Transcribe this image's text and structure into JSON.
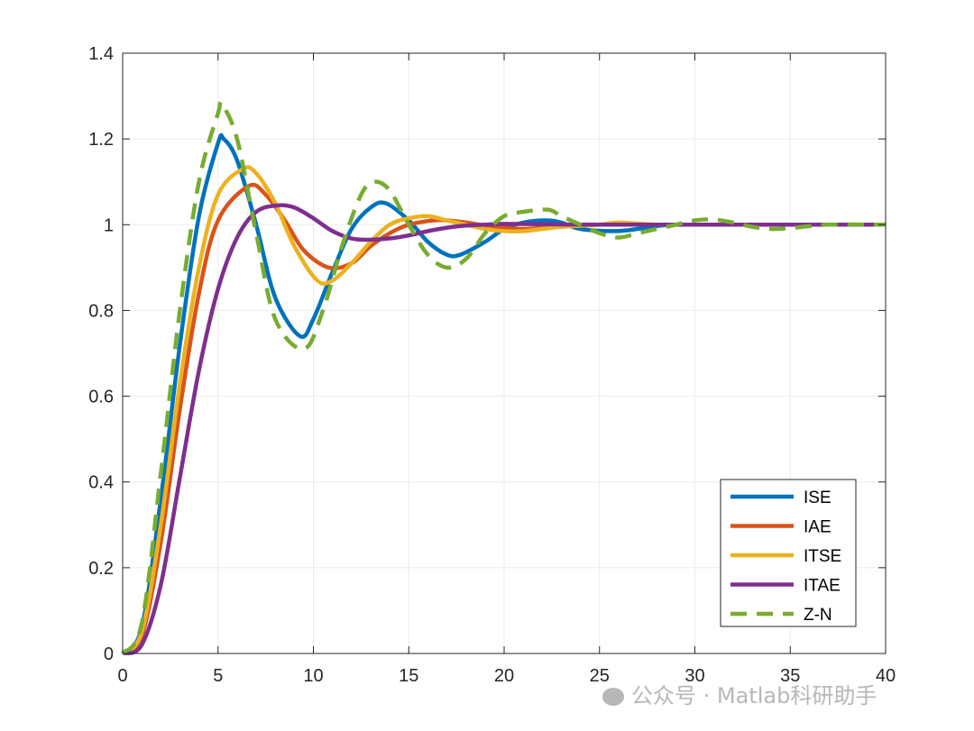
{
  "chart_data": {
    "type": "line",
    "title": "",
    "xlabel": "",
    "ylabel": "",
    "xlim": [
      0,
      40
    ],
    "ylim": [
      0,
      1.4
    ],
    "xticks": [
      0,
      5,
      10,
      15,
      20,
      25,
      30,
      35,
      40
    ],
    "yticks": [
      0,
      0.2,
      0.4,
      0.6,
      0.8,
      1,
      1.2,
      1.4
    ],
    "xtick_labels": [
      "0",
      "5",
      "10",
      "15",
      "20",
      "25",
      "30",
      "35",
      "40"
    ],
    "ytick_labels": [
      "0",
      "0.2",
      "0.4",
      "0.6",
      "0.8",
      "1",
      "1.2",
      "1.4"
    ],
    "grid": true,
    "legend_position": "bottom-right",
    "series": [
      {
        "name": "ISE",
        "color": "#0072BD",
        "dash": false,
        "x": [
          0,
          1,
          2,
          3,
          4,
          5,
          5.3,
          6,
          7,
          8,
          9.3,
          10,
          11,
          12,
          13,
          13.8,
          15,
          16,
          17,
          17.7,
          19,
          20,
          21,
          22.2,
          23,
          24,
          25.8,
          27,
          28,
          29,
          30,
          32,
          35,
          40
        ],
        "y": [
          0,
          0.06,
          0.36,
          0.72,
          1.02,
          1.19,
          1.2,
          1.15,
          1.0,
          0.83,
          0.74,
          0.78,
          0.89,
          0.99,
          1.04,
          1.05,
          1.01,
          0.96,
          0.93,
          0.93,
          0.96,
          0.99,
          1.005,
          1.01,
          1.005,
          0.99,
          0.985,
          0.99,
          0.997,
          1.0,
          1.0,
          1.0,
          1.0,
          1.0
        ]
      },
      {
        "name": "IAE",
        "color": "#D95319",
        "dash": false,
        "x": [
          0,
          1,
          2,
          3,
          4,
          5,
          6.6,
          7.5,
          8.5,
          9.5,
          10.8,
          12,
          13,
          14,
          15,
          16.3,
          17,
          18,
          19,
          20,
          21,
          22,
          23,
          25,
          28,
          30,
          35,
          40
        ],
        "y": [
          0,
          0.04,
          0.26,
          0.57,
          0.84,
          1.01,
          1.09,
          1.07,
          1.01,
          0.94,
          0.9,
          0.91,
          0.95,
          0.98,
          1.0,
          1.01,
          1.01,
          1.005,
          0.998,
          0.993,
          0.99,
          0.993,
          0.998,
          1.0,
          1.0,
          1.0,
          1.0,
          1.0
        ]
      },
      {
        "name": "ITSE",
        "color": "#EDB120",
        "dash": false,
        "x": [
          0,
          1,
          2,
          3,
          4,
          5,
          6.3,
          7,
          8,
          9,
          10.2,
          11,
          12,
          13,
          14,
          15,
          16,
          17,
          18,
          19,
          20,
          21,
          22,
          23,
          25,
          26,
          28,
          30,
          35,
          40
        ],
        "y": [
          0,
          0.05,
          0.3,
          0.63,
          0.9,
          1.07,
          1.13,
          1.12,
          1.05,
          0.95,
          0.87,
          0.87,
          0.91,
          0.96,
          1.0,
          1.015,
          1.02,
          1.01,
          1.0,
          0.99,
          0.985,
          0.985,
          0.99,
          0.995,
          1.0,
          1.005,
          1.0,
          1.0,
          1.0,
          1.0
        ]
      },
      {
        "name": "ITAE",
        "color": "#7E2F8E",
        "dash": false,
        "x": [
          0,
          1,
          2,
          3,
          4,
          5,
          6,
          7,
          8.1,
          9,
          10,
          11,
          12,
          12.8,
          14,
          15,
          16,
          17,
          18,
          19,
          20,
          22,
          25,
          30,
          35,
          40
        ],
        "y": [
          0,
          0.02,
          0.16,
          0.41,
          0.66,
          0.85,
          0.97,
          1.03,
          1.045,
          1.04,
          1.015,
          0.985,
          0.968,
          0.965,
          0.968,
          0.975,
          0.985,
          0.993,
          0.998,
          1.0,
          1.002,
          1.001,
          1.0,
          1.0,
          1.0,
          1.0
        ]
      },
      {
        "name": "Z-N",
        "color": "#77AC30",
        "dash": true,
        "x": [
          0,
          1,
          2,
          3,
          4,
          5,
          5.2,
          6,
          7,
          8,
          9.5,
          10.5,
          11.5,
          12.5,
          13.2,
          14,
          15,
          16,
          17,
          18,
          19,
          20,
          21,
          22.3,
          23,
          24,
          25,
          26,
          27,
          28,
          29,
          30,
          31,
          32,
          33,
          34,
          35,
          37,
          40
        ],
        "y": [
          0,
          0.07,
          0.42,
          0.8,
          1.1,
          1.26,
          1.28,
          1.2,
          0.98,
          0.78,
          0.71,
          0.8,
          0.95,
          1.07,
          1.1,
          1.08,
          1.0,
          0.93,
          0.9,
          0.92,
          0.98,
          1.02,
          1.03,
          1.035,
          1.02,
          1.0,
          0.98,
          0.97,
          0.98,
          0.99,
          1.0,
          1.01,
          1.012,
          1.005,
          0.995,
          0.99,
          0.992,
          1.0,
          1.0
        ]
      }
    ]
  },
  "watermark": "公众号 · Matlab科研助手"
}
